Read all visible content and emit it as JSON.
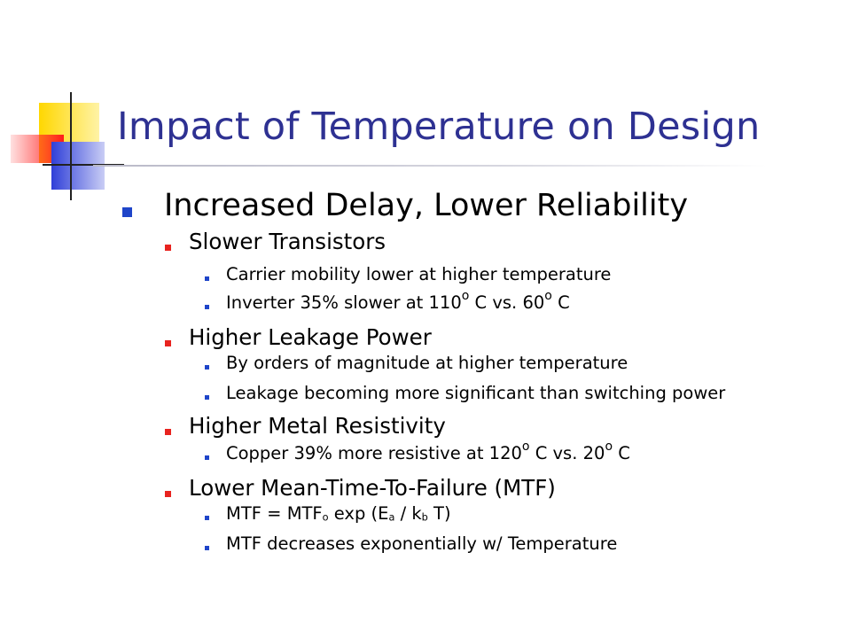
{
  "slide": {
    "title": "Impact of Temperature on Design",
    "heading": "Increased Delay, Lower Reliability",
    "sections": [
      {
        "label": "Slower Transistors",
        "items": [
          {
            "text": "Carrier mobility lower at higher temperature"
          },
          {
            "parts": [
              "Inverter 35% slower at 110",
              "o",
              " C vs. 60",
              "o",
              " C"
            ]
          }
        ]
      },
      {
        "label": "Higher Leakage Power",
        "items": [
          {
            "text": "By orders of magnitude at higher temperature"
          },
          {
            "text": "Leakage becoming more significant than switching power"
          }
        ]
      },
      {
        "label": "Higher Metal Resistivity",
        "items": [
          {
            "parts": [
              "Copper 39% more resistive at 120",
              "o",
              " C vs. 20",
              "o",
              " C"
            ]
          }
        ]
      },
      {
        "label": "Lower Mean-Time-To-Failure (MTF)",
        "items": [
          {
            "parts": [
              "MTF = MTF",
              "o",
              " exp (E",
              "a",
              " / k",
              "b",
              " T)"
            ]
          },
          {
            "text": "MTF decreases exponentially w/ Temperature"
          }
        ]
      }
    ]
  },
  "colors": {
    "title": "#2e3192",
    "bullet_level1": "#1f45c9",
    "bullet_level2": "#e8231f",
    "bullet_level3": "#1f45c9",
    "deco_yellow": "#ffd700",
    "deco_blue": "#2f3fd8",
    "deco_red": "#ff2020"
  }
}
